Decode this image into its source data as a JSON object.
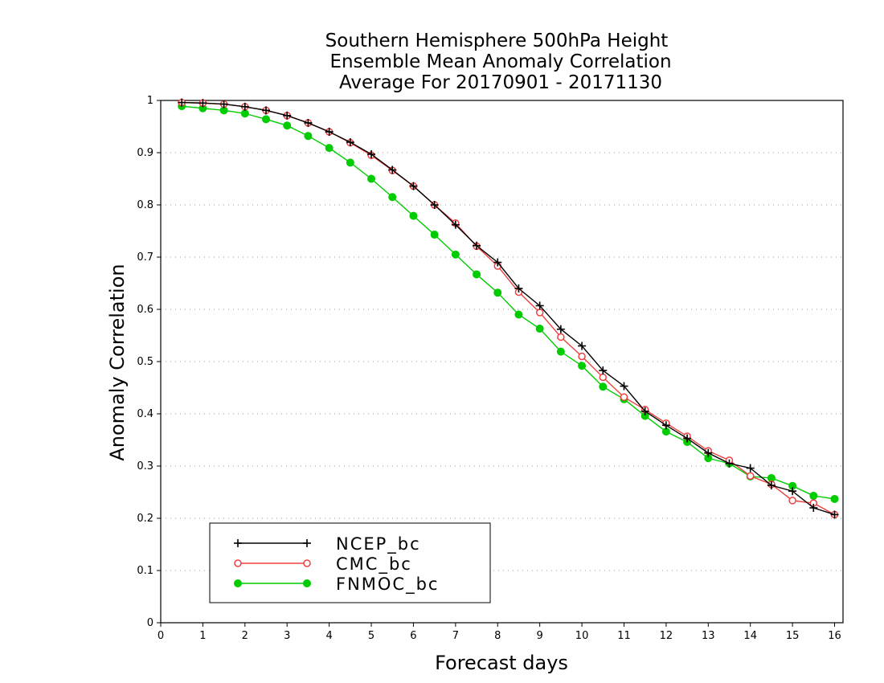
{
  "chart_data": {
    "type": "line",
    "title_lines": [
      "Southern Hemisphere 500hPa Height",
      "Ensemble Mean Anomaly Correlation",
      "Average For 20170901 - 20171130"
    ],
    "xlabel": "Forecast days",
    "ylabel": "Anomaly Correlation",
    "xlim": [
      0,
      16.2
    ],
    "ylim": [
      0,
      1
    ],
    "x_ticks": [
      "0",
      "1",
      "2",
      "3",
      "4",
      "5",
      "6",
      "7",
      "8",
      "9",
      "10",
      "11",
      "12",
      "13",
      "14",
      "15",
      "16"
    ],
    "y_ticks": [
      "0",
      "0.1",
      "0.2",
      "0.3",
      "0.4",
      "0.5",
      "0.6",
      "0.7",
      "0.8",
      "0.9",
      "1"
    ],
    "grid": "horizontal dotted",
    "legend_position": "bottom-left",
    "x": [
      0.5,
      1,
      1.5,
      2,
      2.5,
      3,
      3.5,
      4,
      4.5,
      5,
      5.5,
      6,
      6.5,
      7,
      7.5,
      8,
      8.5,
      9,
      9.5,
      10,
      10.5,
      11,
      11.5,
      12,
      12.5,
      13,
      13.5,
      14,
      14.5,
      15,
      15.5,
      16
    ],
    "series": [
      {
        "name": "NCEP_bc",
        "color": "#000000",
        "marker": "plus",
        "values": [
          0.996,
          0.995,
          0.993,
          0.988,
          0.981,
          0.971,
          0.957,
          0.94,
          0.92,
          0.897,
          0.867,
          0.836,
          0.8,
          0.762,
          0.722,
          0.69,
          0.64,
          0.607,
          0.562,
          0.53,
          0.483,
          0.453,
          0.405,
          0.378,
          0.353,
          0.325,
          0.305,
          0.296,
          0.263,
          0.252,
          0.22,
          0.207
        ]
      },
      {
        "name": "CMC_bc",
        "color": "#ee4040",
        "marker": "open-circle",
        "values": [
          0.996,
          0.995,
          0.993,
          0.988,
          0.981,
          0.971,
          0.957,
          0.94,
          0.919,
          0.895,
          0.866,
          0.836,
          0.8,
          0.765,
          0.721,
          0.683,
          0.633,
          0.594,
          0.547,
          0.51,
          0.47,
          0.432,
          0.408,
          0.382,
          0.357,
          0.329,
          0.311,
          0.281,
          0.265,
          0.234,
          0.229,
          0.207
        ]
      },
      {
        "name": "FNMOC_bc",
        "color": "#00cc00",
        "marker": "filled-circle",
        "values": [
          0.989,
          0.985,
          0.981,
          0.975,
          0.964,
          0.952,
          0.932,
          0.909,
          0.881,
          0.85,
          0.815,
          0.779,
          0.743,
          0.705,
          0.667,
          0.632,
          0.59,
          0.563,
          0.519,
          0.492,
          0.452,
          0.428,
          0.396,
          0.366,
          0.346,
          0.315,
          0.305,
          0.28,
          0.277,
          0.262,
          0.243,
          0.237
        ]
      }
    ]
  }
}
